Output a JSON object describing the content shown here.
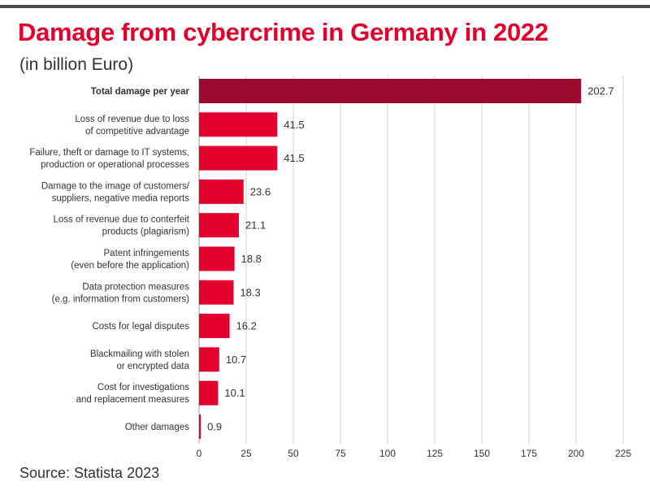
{
  "header": {
    "title": "Damage from cybercrime in Germany in 2022",
    "subtitle": "(in billion Euro)"
  },
  "footer": {
    "source": "Source: Statista 2023"
  },
  "colors": {
    "highlight_bar": "#9b0a2e",
    "bar": "#e3002d",
    "title": "#e3002d",
    "grid": "#d0d0d0"
  },
  "chart_data": {
    "type": "bar",
    "orientation": "horizontal",
    "title": "Damage from cybercrime in Germany in 2022",
    "subtitle": "(in billion Euro)",
    "xlabel": "",
    "ylabel": "",
    "xlim": [
      0,
      225
    ],
    "xticks": [
      0,
      25,
      50,
      75,
      100,
      125,
      150,
      175,
      200,
      225
    ],
    "grid": true,
    "categories": [
      [
        "Total damage per year"
      ],
      [
        "Loss of revenue due to loss",
        "of competitive advantage"
      ],
      [
        "Failure, theft or damage to IT systems,",
        "production or operational processes"
      ],
      [
        "Damage to the image of customers/",
        "suppliers, negative media reports"
      ],
      [
        "Loss of revenue due to conterfeit",
        "products (plagiarism)"
      ],
      [
        "Patent infringements",
        "(even before the application)"
      ],
      [
        "Data protection measures",
        "(e.g. information from customers)"
      ],
      [
        "Costs for legal disputes"
      ],
      [
        "Blackmailing with stolen",
        "or encrypted data"
      ],
      [
        "Cost  for investigations",
        "and replacement measures"
      ],
      [
        "Other damages"
      ]
    ],
    "values": [
      202.7,
      41.5,
      41.5,
      23.6,
      21.1,
      18.8,
      18.3,
      16.2,
      10.7,
      10.1,
      0.9
    ],
    "value_labels": [
      "202.7",
      "41.5",
      "41.5",
      "23.6",
      "21.1",
      "18.8",
      "18.3",
      "16.2",
      "10.7",
      "10.1",
      "0.9"
    ],
    "highlight_index": 0
  }
}
